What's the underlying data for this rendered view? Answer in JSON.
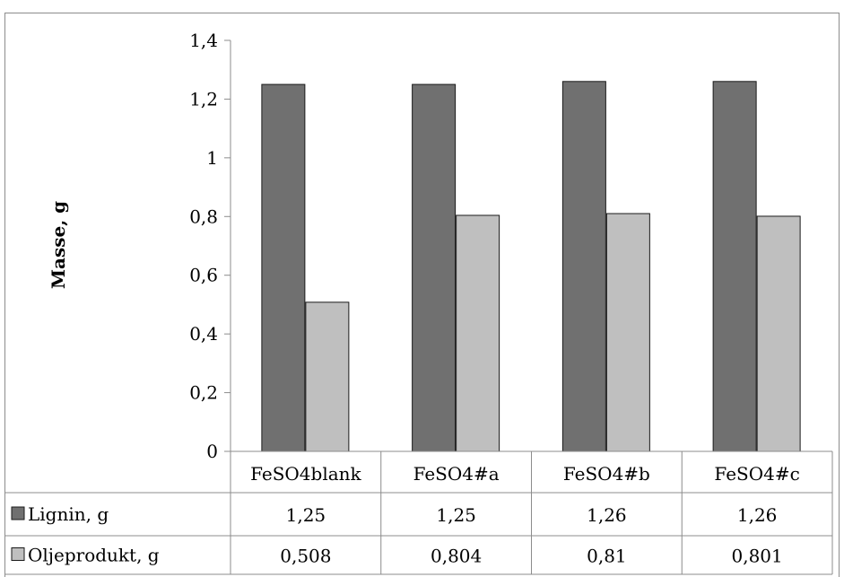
{
  "chart_data": {
    "type": "bar",
    "title": "",
    "xlabel": "",
    "ylabel": "Masse, g",
    "ylim": [
      0,
      1.4
    ],
    "yticks": [
      "0",
      "0,2",
      "0,4",
      "0,6",
      "0,8",
      "1",
      "1,2",
      "1,4"
    ],
    "grid": false,
    "legend": "data-table",
    "categories": [
      "FeSO4blank",
      "FeSO4#a",
      "FeSO4#b",
      "FeSO4#c"
    ],
    "series": [
      {
        "name": "Lignin, g",
        "color": "#707070",
        "values": [
          1.25,
          1.25,
          1.26,
          1.26
        ],
        "labels": [
          "1,25",
          "1,25",
          "1,26",
          "1,26"
        ]
      },
      {
        "name": "Oljeprodukt, g",
        "color": "#bfbfbf",
        "values": [
          0.508,
          0.804,
          0.81,
          0.801
        ],
        "labels": [
          "0,508",
          "0,804",
          "0,81",
          "0,801"
        ]
      }
    ]
  }
}
